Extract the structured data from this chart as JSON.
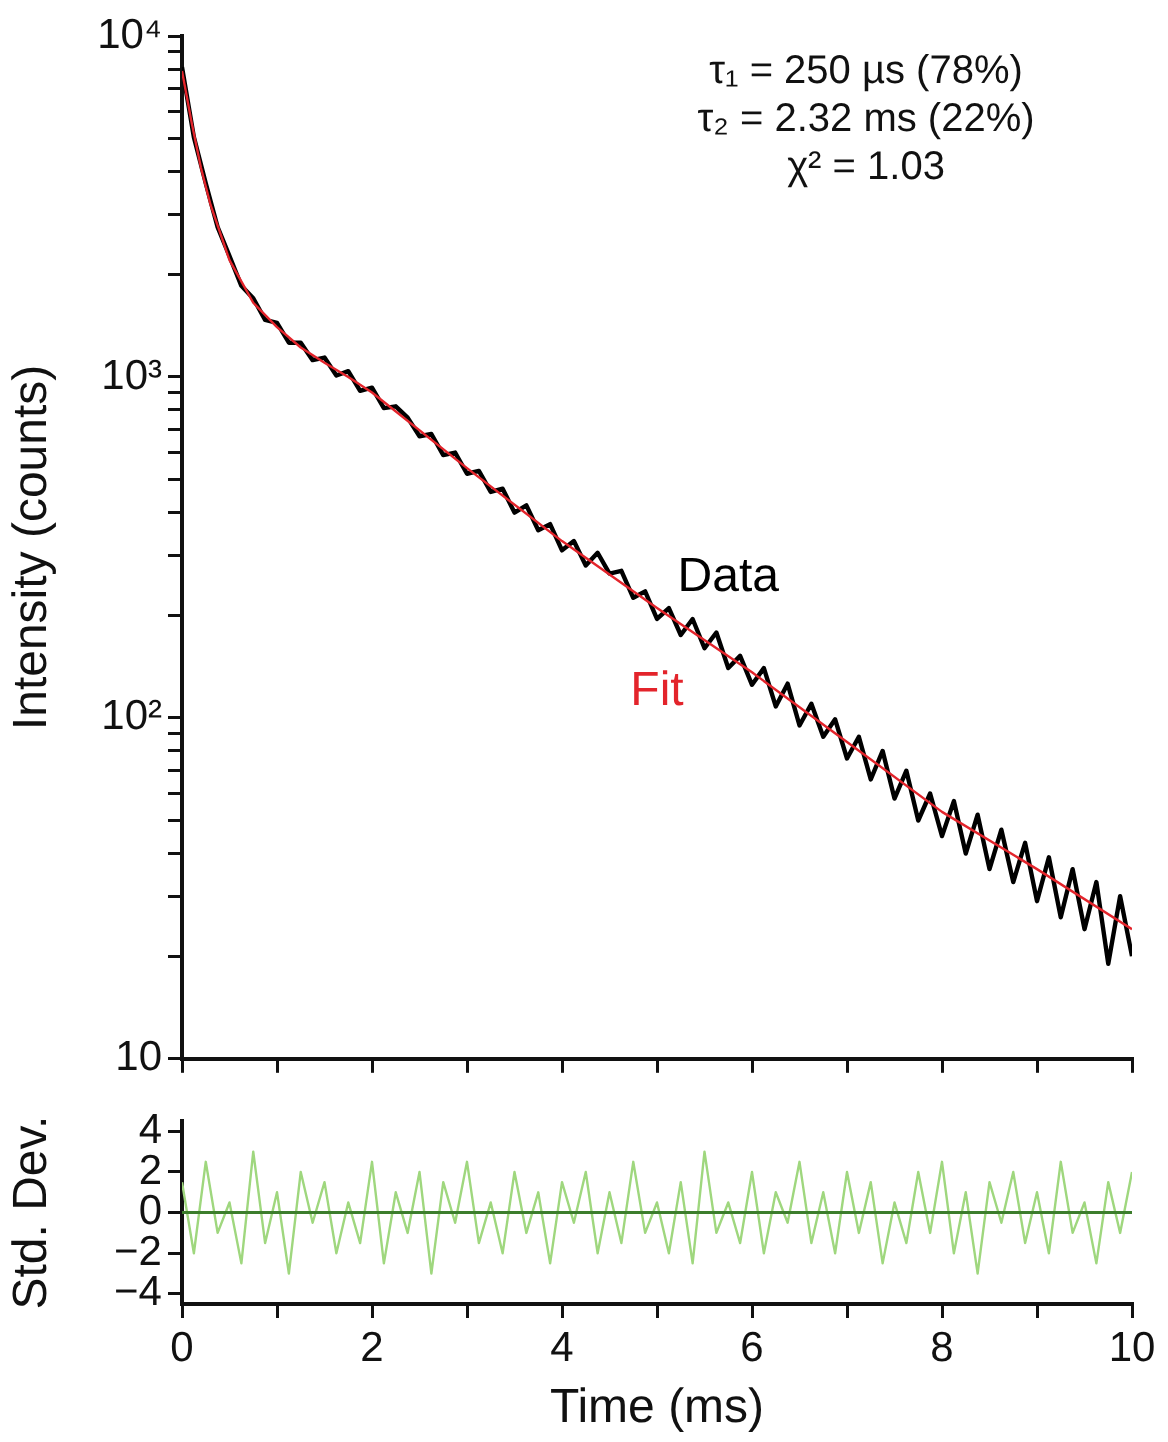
{
  "chart_data": [
    {
      "type": "line",
      "ylabel": "Intensity (counts)",
      "log": "y",
      "xlim": [
        0,
        10
      ],
      "ylim": [
        10,
        10000
      ],
      "xticks": [
        {
          "value": 0,
          "label": null
        },
        {
          "value": 1,
          "label": null
        },
        {
          "value": 2,
          "label": null
        },
        {
          "value": 3,
          "label": null
        },
        {
          "value": 4,
          "label": null
        },
        {
          "value": 5,
          "label": null
        },
        {
          "value": 6,
          "label": null
        },
        {
          "value": 7,
          "label": null
        },
        {
          "value": 8,
          "label": null
        },
        {
          "value": 9,
          "label": null
        },
        {
          "value": 10,
          "label": null
        }
      ],
      "yticks": [
        10,
        {
          "value": 20,
          "label": null
        },
        {
          "value": 30,
          "label": null
        },
        {
          "value": 40,
          "label": null
        },
        {
          "value": 50,
          "label": null
        },
        {
          "value": 60,
          "label": null
        },
        {
          "value": 70,
          "label": null
        },
        {
          "value": 80,
          "label": null
        },
        {
          "value": 90,
          "label": null
        },
        {
          "value": 100,
          "label": "10²"
        },
        {
          "value": 200,
          "label": null
        },
        {
          "value": 300,
          "label": null
        },
        {
          "value": 400,
          "label": null
        },
        {
          "value": 500,
          "label": null
        },
        {
          "value": 600,
          "label": null
        },
        {
          "value": 700,
          "label": null
        },
        {
          "value": 800,
          "label": null
        },
        {
          "value": 900,
          "label": null
        },
        {
          "value": 1000,
          "label": "10³"
        },
        {
          "value": 2000,
          "label": null
        },
        {
          "value": 3000,
          "label": null
        },
        {
          "value": 4000,
          "label": null
        },
        {
          "value": 5000,
          "label": null
        },
        {
          "value": 6000,
          "label": null
        },
        {
          "value": 7000,
          "label": null
        },
        {
          "value": 8000,
          "label": null
        },
        {
          "value": 9000,
          "label": null
        },
        {
          "value": 10000,
          "label": "10⁴"
        }
      ],
      "tick_labels": "y",
      "grid": false,
      "legend": false,
      "marker": "none",
      "annotations": [
        "τ₁ = 250 µs (78%)",
        "τ₂ = 2.32 ms (22%)",
        "χ² = 1.03"
      ],
      "series": [
        {
          "name": "Data",
          "color": "#000000",
          "x": [
            0,
            0.125,
            0.25,
            0.375,
            0.5,
            0.625,
            0.75,
            0.875,
            1,
            1.125,
            1.25,
            1.375,
            1.5,
            1.625,
            1.75,
            1.875,
            2,
            2.125,
            2.25,
            2.375,
            2.5,
            2.625,
            2.75,
            2.875,
            3,
            3.125,
            3.25,
            3.375,
            3.5,
            3.625,
            3.75,
            3.875,
            4,
            4.125,
            4.25,
            4.375,
            4.5,
            4.625,
            4.75,
            4.875,
            5,
            5.125,
            5.25,
            5.375,
            5.5,
            5.625,
            5.75,
            5.875,
            6,
            6.125,
            6.25,
            6.375,
            6.5,
            6.625,
            6.75,
            6.875,
            7,
            7.125,
            7.25,
            7.375,
            7.5,
            7.625,
            7.75,
            7.875,
            8,
            8.125,
            8.25,
            8.375,
            8.5,
            8.625,
            8.75,
            8.875,
            9,
            9.125,
            9.25,
            9.375,
            9.5,
            9.625,
            9.75,
            9.875,
            10
          ],
          "values": [
            8100,
            5050,
            3700,
            2750,
            2260,
            1850,
            1700,
            1470,
            1440,
            1260,
            1260,
            1120,
            1140,
            1010,
            1040,
            910,
            930,
            810,
            820,
            760,
            670,
            680,
            590,
            600,
            520,
            530,
            460,
            470,
            400,
            420,
            355,
            370,
            310,
            330,
            280,
            305,
            265,
            270,
            225,
            235,
            195,
            210,
            175,
            195,
            160,
            178,
            140,
            152,
            125,
            140,
            108,
            126,
            95,
            110,
            88,
            99,
            76,
            88,
            66,
            80,
            58,
            70,
            50,
            60,
            45,
            57,
            40,
            52,
            36,
            47,
            33,
            43,
            29,
            39,
            26,
            36,
            24,
            33,
            19,
            30,
            20
          ]
        },
        {
          "name": "Fit",
          "color": "#e3242b",
          "x": [
            0,
            0.1,
            0.2,
            0.3,
            0.5,
            0.75,
            1,
            1.25,
            1.5,
            1.75,
            2,
            3,
            4,
            5,
            6,
            7,
            8,
            9,
            10
          ],
          "values": [
            7900,
            5600,
            4100,
            3200,
            2200,
            1650,
            1400,
            1220,
            1100,
            1000,
            900,
            540,
            330,
            210,
            136,
            85,
            53,
            36,
            24
          ]
        }
      ]
    },
    {
      "type": "line",
      "xlabel": "Time (ms)",
      "ylabel": "Std. Dev.",
      "xlim": [
        0,
        10
      ],
      "ylim": [
        -4.5,
        4.5
      ],
      "xticks": [
        0,
        {
          "value": 1,
          "label": null
        },
        2,
        {
          "value": 3,
          "label": null
        },
        4,
        {
          "value": 5,
          "label": null
        },
        6,
        {
          "value": 7,
          "label": null
        },
        8,
        {
          "value": 9,
          "label": null
        },
        10
      ],
      "yticks": [
        {
          "value": -4,
          "label": "−4"
        },
        {
          "value": -2,
          "label": "−2"
        },
        0,
        2,
        4
      ],
      "grid": false,
      "legend": false,
      "marker": "none",
      "ref_lines": [
        {
          "axis": "y",
          "value": 0,
          "color": "#3c7d2c"
        }
      ],
      "series": [
        {
          "color": "#9fd77e",
          "x": [
            0,
            0.125,
            0.25,
            0.375,
            0.5,
            0.625,
            0.75,
            0.875,
            1,
            1.125,
            1.25,
            1.375,
            1.5,
            1.625,
            1.75,
            1.875,
            2,
            2.125,
            2.25,
            2.375,
            2.5,
            2.625,
            2.75,
            2.875,
            3,
            3.125,
            3.25,
            3.375,
            3.5,
            3.625,
            3.75,
            3.875,
            4,
            4.125,
            4.25,
            4.375,
            4.5,
            4.625,
            4.75,
            4.875,
            5,
            5.125,
            5.25,
            5.375,
            5.5,
            5.625,
            5.75,
            5.875,
            6,
            6.125,
            6.25,
            6.375,
            6.5,
            6.625,
            6.75,
            6.875,
            7,
            7.125,
            7.25,
            7.375,
            7.5,
            7.625,
            7.75,
            7.875,
            8,
            8.125,
            8.25,
            8.375,
            8.5,
            8.625,
            8.75,
            8.875,
            9,
            9.125,
            9.25,
            9.375,
            9.5,
            9.625,
            9.75,
            9.875,
            10
          ],
          "values": [
            1.5,
            -2,
            2.5,
            -1,
            0.5,
            -2.5,
            3,
            -1.5,
            1,
            -3,
            2,
            -0.5,
            1.5,
            -2,
            0.5,
            -1.5,
            2.5,
            -2.5,
            1,
            -1,
            2,
            -3,
            1.5,
            -0.5,
            2.5,
            -1.5,
            0.5,
            -2,
            2,
            -1,
            1,
            -2.5,
            1.5,
            -0.5,
            2,
            -2,
            1,
            -1.5,
            2.5,
            -1,
            0.5,
            -2,
            1.5,
            -2.5,
            3,
            -1,
            0.5,
            -1.5,
            2,
            -2,
            1,
            -0.5,
            2.5,
            -1.5,
            1,
            -2,
            2,
            -1,
            1.5,
            -2.5,
            0.5,
            -1.5,
            2,
            -1,
            2.5,
            -2,
            1,
            -3,
            1.5,
            -0.5,
            2,
            -1.5,
            1,
            -2,
            2.5,
            -1,
            0.5,
            -2.5,
            1.5,
            -1,
            2
          ]
        }
      ]
    }
  ]
}
